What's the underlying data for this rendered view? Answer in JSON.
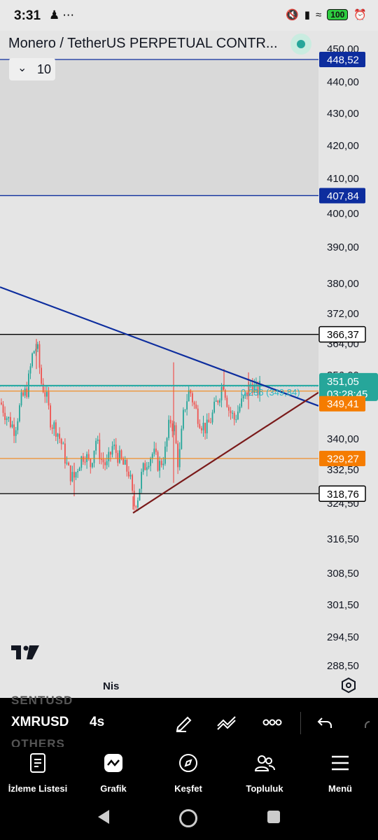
{
  "status_bar": {
    "time": "3:31",
    "battery": "100",
    "left_icons": [
      "person-icon",
      "more-icon"
    ],
    "right_icons": [
      "mute-icon",
      "signal-icon",
      "wifi-icon",
      "battery-icon",
      "alarm-icon"
    ]
  },
  "header": {
    "title": "Monero / TetherUS PERPETUAL CONTR...",
    "interval_value": "10",
    "live_indicator_color": "#26a69a"
  },
  "chart": {
    "time_label": "Nis",
    "watermark": "TradingView logo",
    "annotation": "0,236 (349,84)",
    "countdown": "03:28:45",
    "settings_icon": "hexagon-settings-icon"
  },
  "chart_data": {
    "type": "candlestick",
    "y_ticks": [
      "450,00",
      "440,00",
      "430,00",
      "420,00",
      "410,00",
      "400,00",
      "390,00",
      "380,00",
      "372,00",
      "364,00",
      "356,00",
      "351,05",
      "340,00",
      "332,50",
      "324,50",
      "316,50",
      "308,50",
      "301,50",
      "294,50",
      "288,50"
    ],
    "price_labels": [
      {
        "value": "448,52",
        "kind": "horizontal-line",
        "color": "#0d2d9e"
      },
      {
        "value": "407,84",
        "kind": "horizontal-line",
        "color": "#0d2d9e"
      },
      {
        "value": "366,37",
        "kind": "horizontal-line",
        "color": "#000000"
      },
      {
        "value": "351,05",
        "kind": "last-price",
        "color": "#26a69a"
      },
      {
        "value": "349,41",
        "kind": "line",
        "color": "#f57c00"
      },
      {
        "value": "329,27",
        "kind": "line",
        "color": "#f57c00"
      },
      {
        "value": "318,76",
        "kind": "horizontal-line",
        "color": "#000000"
      }
    ],
    "zones": [
      {
        "from": 407.84,
        "to": 448.52
      },
      {
        "from": 318.76,
        "to": 366.37
      }
    ],
    "trend_lines": [
      {
        "name": "resistance",
        "color": "#0d2d9e",
        "from_price": 380.5,
        "to_price": 345.0
      },
      {
        "name": "support",
        "color": "#7a1a1a",
        "from_price": 313.0,
        "to_price": 349.0
      }
    ],
    "fib_level": {
      "ratio": "0,236",
      "price": 349.84
    },
    "candle_colors": {
      "up": "#26a69a",
      "down": "#ef5350"
    },
    "ylim": [
      287.5,
      453.0
    ]
  },
  "toolbar": {
    "symbol": "XMRUSD",
    "interval": "4s",
    "ghost_top": "SENTUSD",
    "ghost_bottom": "OTHERS",
    "buttons": [
      "draw-pen-icon",
      "indicators-icon",
      "more-horizontal-icon",
      "undo-icon",
      "redo-icon"
    ]
  },
  "bottom_nav": [
    {
      "label": "İzleme Listesi",
      "icon": "watchlist-icon"
    },
    {
      "label": "Grafik",
      "icon": "chart-icon"
    },
    {
      "label": "Keşfet",
      "icon": "compass-icon"
    },
    {
      "label": "Topluluk",
      "icon": "community-icon"
    },
    {
      "label": "Menü",
      "icon": "menu-icon"
    }
  ],
  "system_nav": {
    "ghost_labels": [
      "Izleme Listesi",
      "Grafik",
      "Keşfet",
      "Topluluk",
      "Menü"
    ]
  }
}
